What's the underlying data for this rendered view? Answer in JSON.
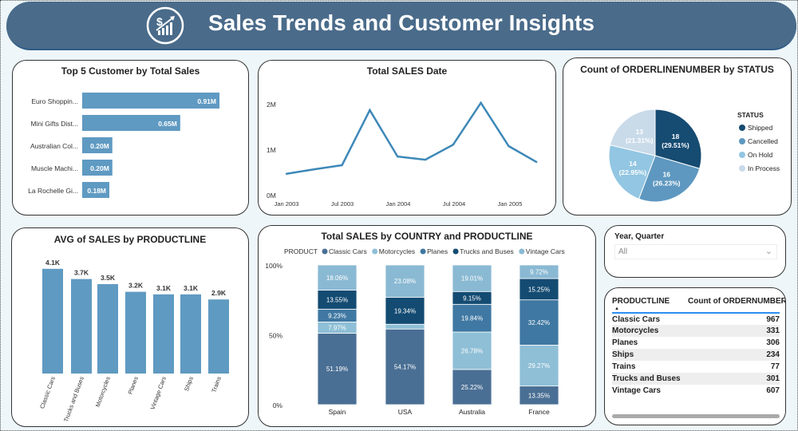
{
  "header": {
    "title": "Sales Trends and Customer Insights",
    "logo_icon": "dollar-growth-chart-icon"
  },
  "top_customers": {
    "title": "Top 5 Customer by Total Sales",
    "items": [
      {
        "name": "Euro Shoppin...",
        "value": 0.91,
        "label": "0.91M"
      },
      {
        "name": "Mini Gifts Dist...",
        "value": 0.65,
        "label": "0.65M"
      },
      {
        "name": "Australian Col...",
        "value": 0.2,
        "label": "0.20M"
      },
      {
        "name": "Muscle Machi...",
        "value": 0.2,
        "label": "0.20M"
      },
      {
        "name": "La Rochelle Gi...",
        "value": 0.18,
        "label": "0.18M"
      }
    ],
    "color": "#5f9ac2"
  },
  "sales_date": {
    "title": "Total SALES Date",
    "y_ticks": [
      "0M",
      "1M",
      "2M"
    ],
    "x_ticks": [
      "Jan 2003",
      "Jul 2003",
      "Jan 2004",
      "Jul 2004",
      "Jan 2005"
    ],
    "values_m": [
      0.46,
      0.56,
      0.65,
      1.86,
      0.84,
      0.77,
      1.1,
      2.02,
      1.07,
      0.72
    ],
    "color": "#3d88b8"
  },
  "status_pie": {
    "title": "Count of ORDERLINENUMBER by STATUS",
    "legend_title": "STATUS",
    "slices": [
      {
        "name": "Shipped",
        "count": "18",
        "pct": "(29.51%)",
        "value": 29.51,
        "color": "#164b72"
      },
      {
        "name": "Cancelled",
        "count": "16",
        "pct": "(26.23%)",
        "value": 26.23,
        "color": "#5e98c0"
      },
      {
        "name": "On Hold",
        "count": "14",
        "pct": "(22.95%)",
        "value": 22.95,
        "color": "#92c6e2"
      },
      {
        "name": "In Process",
        "count": "13",
        "pct": "(21.31%)",
        "value": 21.31,
        "color": "#c9dae9"
      }
    ]
  },
  "avg_sales": {
    "title": "AVG of SALES by PRODUCTLINE",
    "items": [
      {
        "name": "Classic Cars",
        "value": 4.1,
        "label": "4.1K"
      },
      {
        "name": "Trucks and Buses",
        "value": 3.7,
        "label": "3.7K"
      },
      {
        "name": "Motorcycles",
        "value": 3.5,
        "label": "3.5K"
      },
      {
        "name": "Planes",
        "value": 3.2,
        "label": "3.2K"
      },
      {
        "name": "Vintage Cars",
        "value": 3.1,
        "label": "3.1K"
      },
      {
        "name": "Ships",
        "value": 3.1,
        "label": "3.1K"
      },
      {
        "name": "Trains",
        "value": 2.9,
        "label": "2.9K"
      }
    ],
    "color": "#5f9ac2"
  },
  "country_product": {
    "title": "Total SALES by COUNTRY and PRODUCTLINE",
    "legend_title": "PRODUCT",
    "y_ticks": [
      "0%",
      "50%",
      "100%"
    ],
    "series": [
      {
        "name": "Classic Cars",
        "color": "#4a6f94"
      },
      {
        "name": "Motorcycles",
        "color": "#8ebfd6"
      },
      {
        "name": "Planes",
        "color": "#3f78a2"
      },
      {
        "name": "Trucks and Buses",
        "color": "#144b72"
      },
      {
        "name": "Vintage Cars",
        "color": "#8ab9d3"
      }
    ],
    "countries": [
      {
        "name": "Spain",
        "values": [
          51.19,
          7.97,
          9.23,
          13.55,
          18.06
        ],
        "labels": [
          "51.19%",
          "7.97%",
          "9.23%",
          "13.55%",
          "18.06%"
        ]
      },
      {
        "name": "USA",
        "values": [
          54.17,
          3.41,
          0,
          19.34,
          23.08
        ],
        "labels": [
          "54.17%",
          "",
          "",
          "19.34%",
          "23.08%"
        ]
      },
      {
        "name": "Australia",
        "values": [
          25.22,
          26.78,
          19.84,
          9.15,
          19.01
        ],
        "labels": [
          "25.22%",
          "26.78%",
          "19.84%",
          "9.15%",
          "19.01%"
        ]
      },
      {
        "name": "France",
        "values": [
          13.35,
          29.27,
          32.42,
          15.25,
          9.72
        ],
        "labels": [
          "13.35%",
          "29.27%",
          "32.42%",
          "15.25%",
          "9.72%"
        ]
      }
    ]
  },
  "slicer": {
    "label": "Year, Quarter",
    "value": "All"
  },
  "table": {
    "headers": [
      "PRODUCTLINE",
      "Count of ORDERNUMBER"
    ],
    "rows": [
      [
        "Classic Cars",
        "967"
      ],
      [
        "Motorcycles",
        "331"
      ],
      [
        "Planes",
        "306"
      ],
      [
        "Ships",
        "234"
      ],
      [
        "Trains",
        "77"
      ],
      [
        "Trucks and Buses",
        "301"
      ],
      [
        "Vintage Cars",
        "607"
      ]
    ]
  }
}
